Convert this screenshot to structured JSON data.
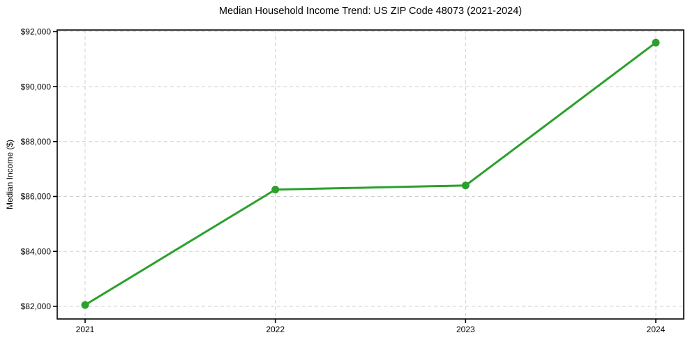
{
  "chart_data": {
    "type": "line",
    "title": "Median Household Income Trend: US ZIP Code 48073 (2021-2024)",
    "xlabel": "",
    "ylabel": "Median Income ($)",
    "categories": [
      "2021",
      "2022",
      "2023",
      "2024"
    ],
    "series": [
      {
        "name": "Median Household Income",
        "values": [
          82050,
          86250,
          86400,
          91600
        ]
      }
    ],
    "ylim": [
      81540,
      92060
    ],
    "yticks": [
      82000,
      84000,
      86000,
      88000,
      90000,
      92000
    ],
    "ytick_labels": [
      "$82,000",
      "$84,000",
      "$86,000",
      "$88,000",
      "$90,000",
      "$92,000"
    ],
    "grid": true,
    "legend": false,
    "line_color": "#2ca02c",
    "marker_color": "#2ca02c",
    "grid_color": "#cfcfcf",
    "spine_color": "#000000"
  }
}
